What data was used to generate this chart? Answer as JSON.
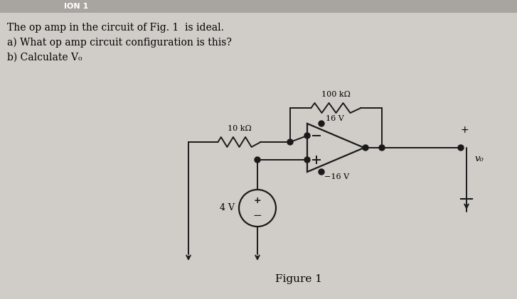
{
  "bg_color": "#d0cdc8",
  "header_color": "#b8b5b0",
  "text_line1": "The op amp in the circuit of Fig. 1  is ideal.",
  "text_line2": "a) What op amp circuit configuration is this?",
  "text_line3": "b) Calculate V₀",
  "figure_label": "Figure 1",
  "resistor_10k": "10 kΩ",
  "resistor_100k": "100 kΩ",
  "voltage_16": "16 V",
  "voltage_neg16": "−16 V",
  "voltage_4": "4 V",
  "v_out": "v₀",
  "line_color": "#1a1a1a",
  "dot_color": "#1a1a1a",
  "lw": 1.4
}
